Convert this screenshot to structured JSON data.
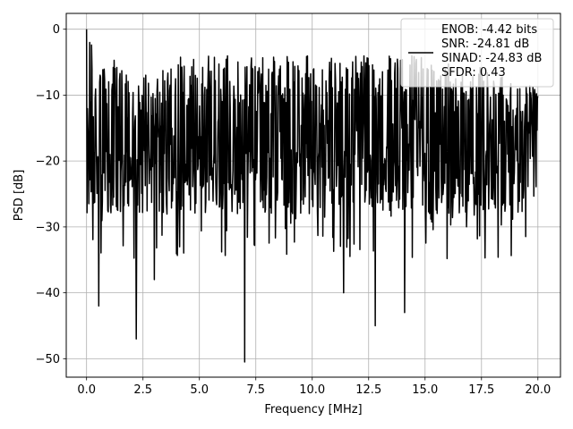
{
  "chart_data": {
    "type": "line",
    "title": "",
    "xlabel": "Frequency [MHz]",
    "ylabel": "PSD [dB]",
    "xlim": [
      -0.9,
      21.0
    ],
    "ylim": [
      -52.8,
      2.4
    ],
    "xticks": [
      0.0,
      2.5,
      5.0,
      7.5,
      10.0,
      12.5,
      15.0,
      17.5,
      20.0
    ],
    "xtick_labels": [
      "0.0",
      "2.5",
      "5.0",
      "7.5",
      "10.0",
      "12.5",
      "15.0",
      "17.5",
      "20.0"
    ],
    "yticks": [
      0,
      -10,
      -20,
      -30,
      -40,
      -50
    ],
    "ytick_labels": [
      "0",
      "−10",
      "−20",
      "−30",
      "−40",
      "−50"
    ],
    "grid": true,
    "legend_position": "top-right",
    "series": [
      {
        "name": "ENOB: -4.42 bits\nSNR: -24.81 dB\nSINAD: -24.83 dB\nSFDR: 0.43",
        "color": "#000000",
        "spectrum": {
          "x_start": 0.0,
          "x_end": 20.0,
          "num_points": 1000,
          "envelope_max": [
            [
              0.0,
              -1
            ],
            [
              2.5,
              -7
            ],
            [
              4.0,
              -4
            ],
            [
              10.0,
              -4
            ],
            [
              15.0,
              -4
            ],
            [
              18.0,
              -6
            ],
            [
              20.0,
              -9
            ]
          ],
          "envelope_median": [
            [
              0.0,
              -17
            ],
            [
              20.0,
              -17
            ]
          ],
          "envelope_min_typical": [
            [
              0.0,
              -28
            ],
            [
              20.0,
              -28
            ]
          ],
          "features": [
            {
              "x": 0.0,
              "y": 0
            },
            {
              "x": 0.55,
              "y": -42
            },
            {
              "x": 2.2,
              "y": -47
            },
            {
              "x": 3.0,
              "y": -38
            },
            {
              "x": 7.0,
              "y": -50.5
            },
            {
              "x": 11.4,
              "y": -40
            },
            {
              "x": 12.8,
              "y": -45
            },
            {
              "x": 14.1,
              "y": -43
            }
          ]
        }
      }
    ]
  }
}
